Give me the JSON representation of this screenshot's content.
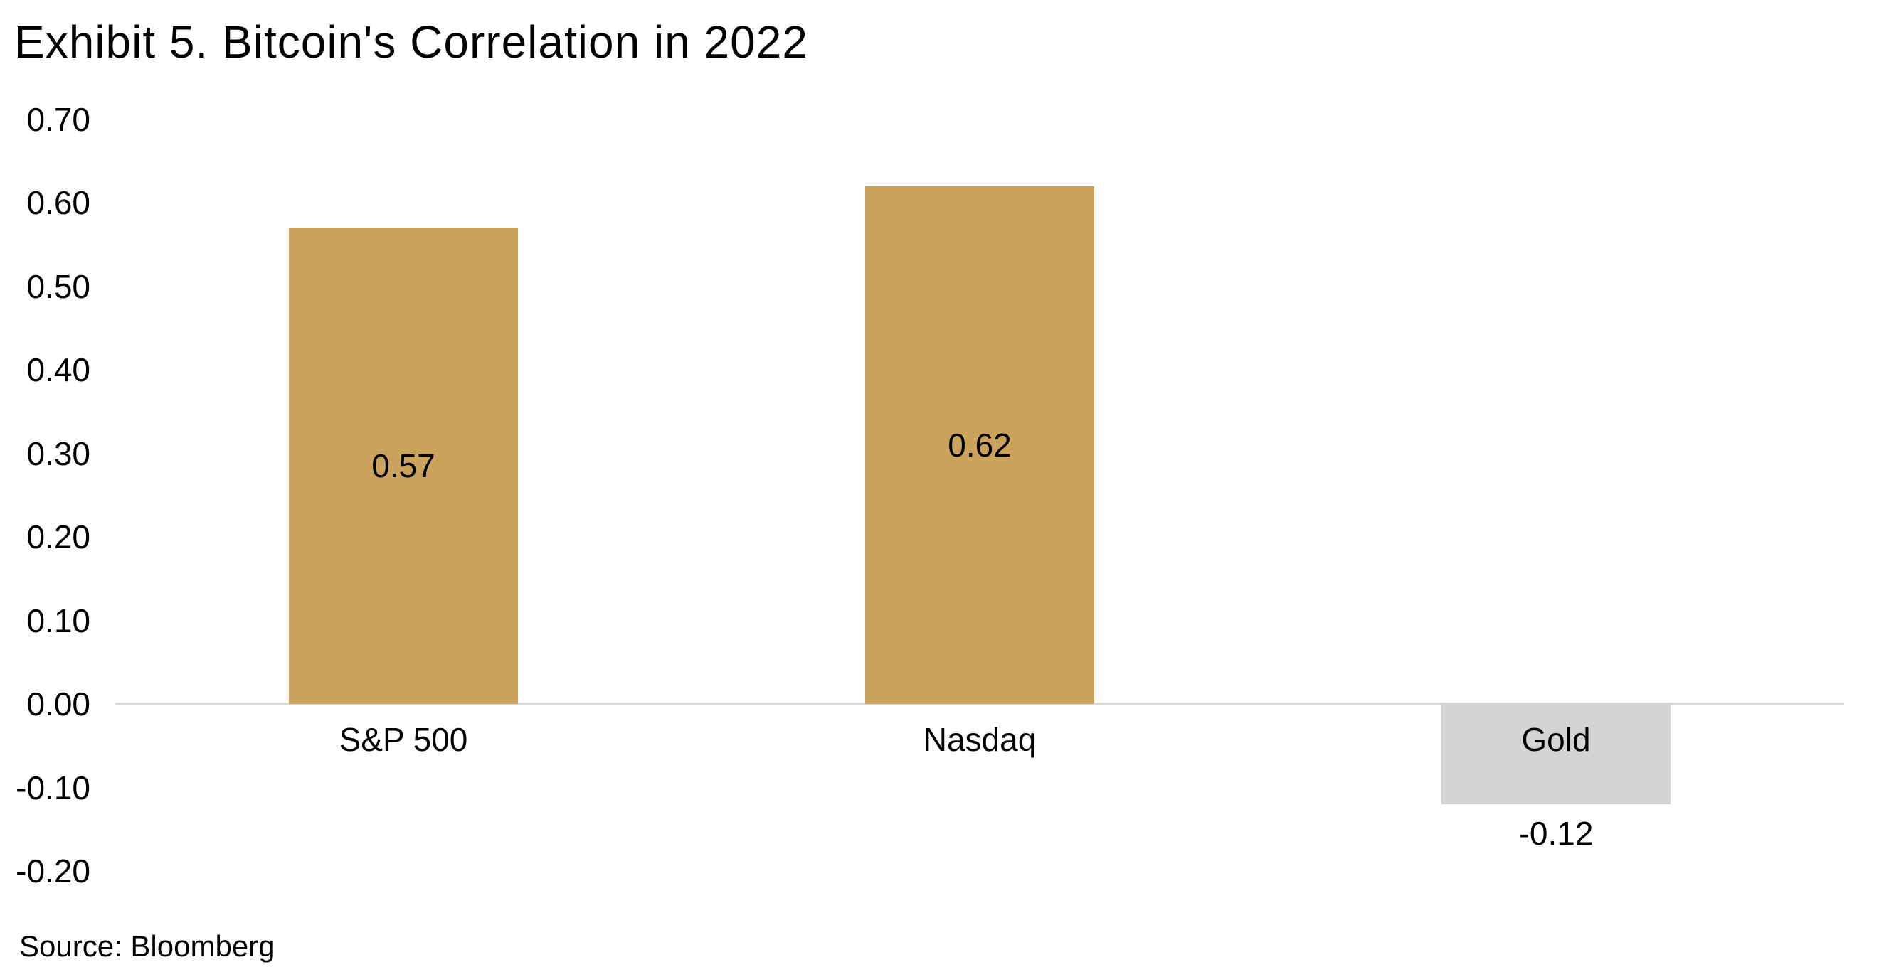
{
  "page": {
    "title": "Exhibit 5. Bitcoin's Correlation in 2022",
    "source": "Source: Bloomberg"
  },
  "chart_data": {
    "type": "bar",
    "title": "Exhibit 5. Bitcoin's Correlation in 2022",
    "categories": [
      "S&P 500",
      "Nasdaq",
      "Gold"
    ],
    "values": [
      0.57,
      0.62,
      -0.12
    ],
    "value_labels": [
      "0.57",
      "0.62",
      "-0.12"
    ],
    "value_label_positions": [
      "inside-center",
      "inside-center",
      "outside-end"
    ],
    "bar_colors": [
      "#CCA35C",
      "#CCA35C",
      "#D4D4D4"
    ],
    "y_ticks": [
      "0.70",
      "0.60",
      "0.50",
      "0.40",
      "0.30",
      "0.20",
      "0.10",
      "0.00",
      "-0.10",
      "-0.20"
    ],
    "ylim": [
      -0.2,
      0.7
    ],
    "xlabel": "",
    "ylabel": "",
    "grid": false,
    "legend": false,
    "annotations": [],
    "source": "Source: Bloomberg",
    "colors": {
      "axis_line": "#D9D9D9",
      "text": "#000000",
      "background": "#FFFFFF"
    }
  }
}
